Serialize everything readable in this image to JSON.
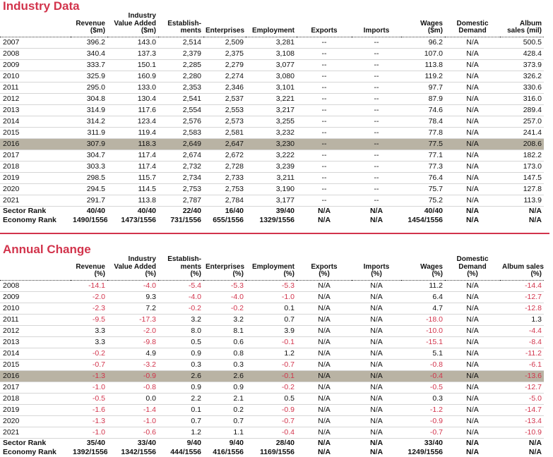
{
  "industry_data": {
    "title": "Industry Data",
    "columns": [
      [
        "Revenue",
        "($m)"
      ],
      [
        "Industry",
        "Value Added",
        "($m)"
      ],
      [
        "Establish-",
        "ments"
      ],
      [
        "Enterprises"
      ],
      [
        "Employment"
      ],
      [
        "Exports"
      ],
      [
        "Imports"
      ],
      [
        "Wages",
        "($m)"
      ],
      [
        "Domestic",
        "Demand"
      ],
      [
        "Album",
        "sales (mil)"
      ]
    ],
    "rows": [
      [
        "2007",
        "396.2",
        "143.0",
        "2,514",
        "2,509",
        "3,281",
        "--",
        "--",
        "96.2",
        "N/A",
        "500.5"
      ],
      [
        "2008",
        "340.4",
        "137.3",
        "2,379",
        "2,375",
        "3,108",
        "--",
        "--",
        "107.0",
        "N/A",
        "428.4"
      ],
      [
        "2009",
        "333.7",
        "150.1",
        "2,285",
        "2,279",
        "3,077",
        "--",
        "--",
        "113.8",
        "N/A",
        "373.9"
      ],
      [
        "2010",
        "325.9",
        "160.9",
        "2,280",
        "2,274",
        "3,080",
        "--",
        "--",
        "119.2",
        "N/A",
        "326.2"
      ],
      [
        "2011",
        "295.0",
        "133.0",
        "2,353",
        "2,346",
        "3,101",
        "--",
        "--",
        "97.7",
        "N/A",
        "330.6"
      ],
      [
        "2012",
        "304.8",
        "130.4",
        "2,541",
        "2,537",
        "3,221",
        "--",
        "--",
        "87.9",
        "N/A",
        "316.0"
      ],
      [
        "2013",
        "314.9",
        "117.6",
        "2,554",
        "2,553",
        "3,217",
        "--",
        "--",
        "74.6",
        "N/A",
        "289.4"
      ],
      [
        "2014",
        "314.2",
        "123.4",
        "2,576",
        "2,573",
        "3,255",
        "--",
        "--",
        "78.4",
        "N/A",
        "257.0"
      ],
      [
        "2015",
        "311.9",
        "119.4",
        "2,583",
        "2,581",
        "3,232",
        "--",
        "--",
        "77.8",
        "N/A",
        "241.4"
      ],
      [
        "2016",
        "307.9",
        "118.3",
        "2,649",
        "2,647",
        "3,230",
        "--",
        "--",
        "77.5",
        "N/A",
        "208.6"
      ],
      [
        "2017",
        "304.7",
        "117.4",
        "2,674",
        "2,672",
        "3,222",
        "--",
        "--",
        "77.1",
        "N/A",
        "182.2"
      ],
      [
        "2018",
        "303.3",
        "117.4",
        "2,732",
        "2,728",
        "3,239",
        "--",
        "--",
        "77.3",
        "N/A",
        "173.0"
      ],
      [
        "2019",
        "298.5",
        "115.7",
        "2,734",
        "2,733",
        "3,211",
        "--",
        "--",
        "76.4",
        "N/A",
        "147.5"
      ],
      [
        "2020",
        "294.5",
        "114.5",
        "2,753",
        "2,753",
        "3,190",
        "--",
        "--",
        "75.7",
        "N/A",
        "127.8"
      ],
      [
        "2021",
        "291.7",
        "113.8",
        "2,787",
        "2,784",
        "3,177",
        "--",
        "--",
        "75.2",
        "N/A",
        "113.9"
      ]
    ],
    "ranks": [
      [
        "Sector Rank",
        "40/40",
        "40/40",
        "22/40",
        "16/40",
        "39/40",
        "N/A",
        "N/A",
        "40/40",
        "N/A",
        "N/A"
      ],
      [
        "Economy Rank",
        "1490/1556",
        "1473/1556",
        "731/1556",
        "655/1556",
        "1329/1556",
        "N/A",
        "N/A",
        "1454/1556",
        "N/A",
        "N/A"
      ]
    ]
  },
  "annual_change": {
    "title": "Annual Change",
    "columns": [
      [
        "Revenue",
        "(%)"
      ],
      [
        "Industry",
        "Value Added",
        "(%)"
      ],
      [
        "Establish-",
        "ments",
        "(%)"
      ],
      [
        "Enterprises",
        "(%)"
      ],
      [
        "Employment",
        "(%)"
      ],
      [
        "Exports",
        "(%)"
      ],
      [
        "Imports",
        "(%)"
      ],
      [
        "Wages",
        "(%)"
      ],
      [
        "Domestic",
        "Demand",
        "(%)"
      ],
      [
        "Album sales",
        "(%)"
      ]
    ],
    "rows": [
      [
        "2008",
        "-14.1",
        "-4.0",
        "-5.4",
        "-5.3",
        "-5.3",
        "N/A",
        "N/A",
        "11.2",
        "N/A",
        "-14.4"
      ],
      [
        "2009",
        "-2.0",
        "9.3",
        "-4.0",
        "-4.0",
        "-1.0",
        "N/A",
        "N/A",
        "6.4",
        "N/A",
        "-12.7"
      ],
      [
        "2010",
        "-2.3",
        "7.2",
        "-0.2",
        "-0.2",
        "0.1",
        "N/A",
        "N/A",
        "4.7",
        "N/A",
        "-12.8"
      ],
      [
        "2011",
        "-9.5",
        "-17.3",
        "3.2",
        "3.2",
        "0.7",
        "N/A",
        "N/A",
        "-18.0",
        "N/A",
        "1.3"
      ],
      [
        "2012",
        "3.3",
        "-2.0",
        "8.0",
        "8.1",
        "3.9",
        "N/A",
        "N/A",
        "-10.0",
        "N/A",
        "-4.4"
      ],
      [
        "2013",
        "3.3",
        "-9.8",
        "0.5",
        "0.6",
        "-0.1",
        "N/A",
        "N/A",
        "-15.1",
        "N/A",
        "-8.4"
      ],
      [
        "2014",
        "-0.2",
        "4.9",
        "0.9",
        "0.8",
        "1.2",
        "N/A",
        "N/A",
        "5.1",
        "N/A",
        "-11.2"
      ],
      [
        "2015",
        "-0.7",
        "-3.2",
        "0.3",
        "0.3",
        "-0.7",
        "N/A",
        "N/A",
        "-0.8",
        "N/A",
        "-6.1"
      ],
      [
        "2016",
        "-1.3",
        "-0.9",
        "2.6",
        "2.6",
        "-0.1",
        "N/A",
        "N/A",
        "-0.4",
        "N/A",
        "-13.6"
      ],
      [
        "2017",
        "-1.0",
        "-0.8",
        "0.9",
        "0.9",
        "-0.2",
        "N/A",
        "N/A",
        "-0.5",
        "N/A",
        "-12.7"
      ],
      [
        "2018",
        "-0.5",
        "0.0",
        "2.2",
        "2.1",
        "0.5",
        "N/A",
        "N/A",
        "0.3",
        "N/A",
        "-5.0"
      ],
      [
        "2019",
        "-1.6",
        "-1.4",
        "0.1",
        "0.2",
        "-0.9",
        "N/A",
        "N/A",
        "-1.2",
        "N/A",
        "-14.7"
      ],
      [
        "2020",
        "-1.3",
        "-1.0",
        "0.7",
        "0.7",
        "-0.7",
        "N/A",
        "N/A",
        "-0.9",
        "N/A",
        "-13.4"
      ],
      [
        "2021",
        "-1.0",
        "-0.6",
        "1.2",
        "1.1",
        "-0.4",
        "N/A",
        "N/A",
        "-0.7",
        "N/A",
        "-10.9"
      ]
    ],
    "ranks": [
      [
        "Sector Rank",
        "35/40",
        "33/40",
        "9/40",
        "9/40",
        "28/40",
        "N/A",
        "N/A",
        "33/40",
        "N/A",
        "N/A"
      ],
      [
        "Economy Rank",
        "1392/1556",
        "1342/1556",
        "444/1556",
        "416/1556",
        "1169/1556",
        "N/A",
        "N/A",
        "1249/1556",
        "N/A",
        "N/A"
      ]
    ]
  }
}
